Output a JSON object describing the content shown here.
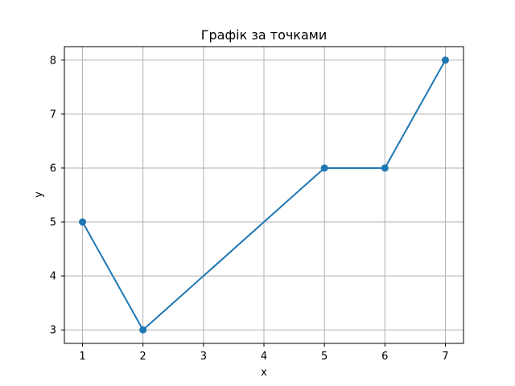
{
  "chart_data": {
    "type": "line",
    "title": "Графік за точками",
    "xlabel": "x",
    "ylabel": "y",
    "x": [
      1,
      2,
      5,
      6,
      7
    ],
    "series": [
      {
        "values": [
          5,
          3,
          6,
          6,
          8
        ],
        "color": "#1f77b4",
        "marker": "circle"
      }
    ],
    "xticks": [
      "1",
      "2",
      "3",
      "4",
      "5",
      "6",
      "7"
    ],
    "yticks": [
      "3",
      "4",
      "5",
      "6",
      "7",
      "8"
    ],
    "xlim": [
      0.7,
      7.3
    ],
    "ylim": [
      2.75,
      8.25
    ],
    "grid": true,
    "grid_color": "#b0b0b0",
    "axis_color": "#000000"
  }
}
